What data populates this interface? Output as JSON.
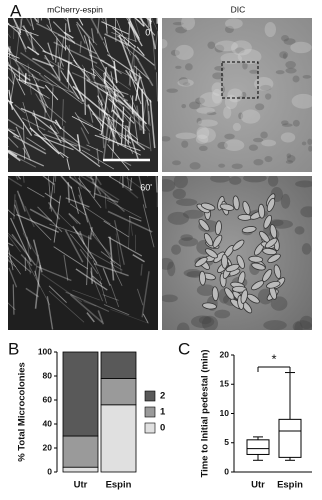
{
  "panel_labels": [
    "A",
    "B",
    "C"
  ],
  "images": {
    "col_titles": [
      "mCherry-espin",
      "DIC"
    ],
    "time_labels": [
      "0'",
      "60'"
    ]
  },
  "chart_data": [
    {
      "type": "stacked_bar",
      "y_label": "% Total Microcolonies",
      "categories": [
        "Utr",
        "Espin"
      ],
      "series": [
        {
          "name": "2",
          "color": "#595959",
          "values": [
            70,
            22
          ]
        },
        {
          "name": "1",
          "color": "#9a9a9a",
          "values": [
            26,
            22
          ]
        },
        {
          "name": "0",
          "color": "#e0e0e0",
          "values": [
            4,
            56
          ]
        }
      ],
      "ylim": [
        0,
        100
      ],
      "yticks": [
        0,
        20,
        40,
        60,
        80,
        100
      ],
      "legend": "right"
    },
    {
      "type": "box",
      "y_label": "Time to Initial pedestal (min)",
      "categories": [
        "Utr",
        "Espin"
      ],
      "boxes": [
        {
          "min": 2,
          "q1": 3,
          "median": 4,
          "q3": 5.5,
          "max": 6
        },
        {
          "min": 2,
          "q1": 2.5,
          "median": 7,
          "q3": 9,
          "max": 17
        }
      ],
      "ylim": [
        0,
        20
      ],
      "yticks": [
        0,
        5,
        10,
        15,
        20
      ],
      "annotation": "*"
    }
  ]
}
